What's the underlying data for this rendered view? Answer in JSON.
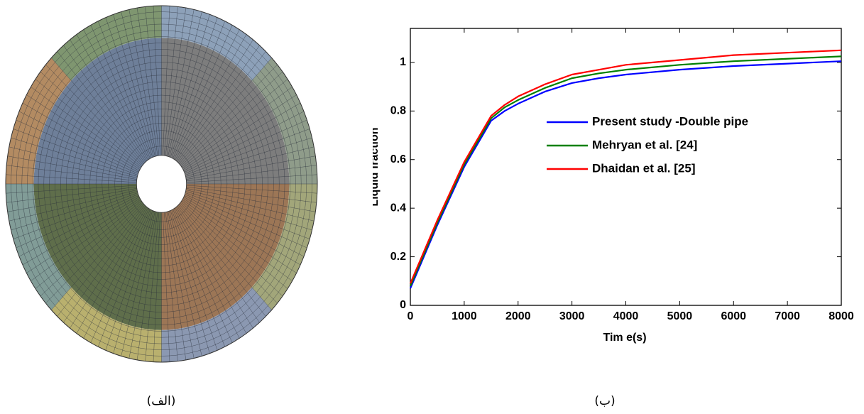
{
  "chart_data": {
    "type": "line",
    "y_label": "Liquid fraction",
    "x_label": "Tim e(s)",
    "x": [
      0,
      250,
      500,
      1000,
      1500,
      1750,
      2000,
      2500,
      3000,
      3500,
      4000,
      5000,
      6000,
      7000,
      8000
    ],
    "series": [
      {
        "name": "Present study -Double pipe",
        "color": "#0000ff",
        "values": [
          0.07,
          0.2,
          0.33,
          0.57,
          0.76,
          0.8,
          0.83,
          0.88,
          0.915,
          0.935,
          0.95,
          0.97,
          0.985,
          0.995,
          1.005
        ]
      },
      {
        "name": "Mehryan et al. [24]",
        "color": "#008000",
        "values": [
          0.08,
          0.21,
          0.34,
          0.58,
          0.77,
          0.815,
          0.845,
          0.895,
          0.935,
          0.955,
          0.97,
          0.99,
          1.005,
          1.015,
          1.025
        ]
      },
      {
        "name": "Dhaidan et al. [25]",
        "color": "#ff0000",
        "values": [
          0.09,
          0.22,
          0.35,
          0.59,
          0.78,
          0.825,
          0.86,
          0.91,
          0.95,
          0.97,
          0.99,
          1.01,
          1.03,
          1.04,
          1.05
        ]
      }
    ],
    "xlim": [
      0,
      8000
    ],
    "xticks": [
      0,
      1000,
      2000,
      3000,
      4000,
      5000,
      6000,
      7000,
      8000
    ],
    "ylim": [
      0,
      1.14
    ],
    "yticks": [
      0,
      0.2,
      0.4,
      0.6,
      0.8,
      1
    ],
    "legend": "right"
  },
  "captions": [
    "(الف)",
    "(ب)"
  ]
}
